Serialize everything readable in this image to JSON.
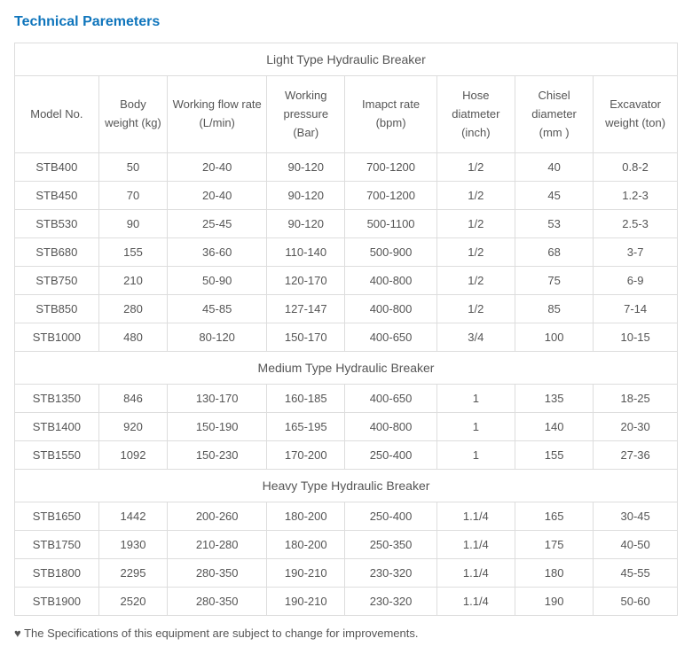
{
  "title": "Technical Paremeters",
  "columns": [
    "Model No.",
    "Body weight (kg)",
    "Working flow rate (L/min)",
    "Working pressure (Bar)",
    "Imapct rate (bpm)",
    "Hose diatmeter (inch)",
    "Chisel diameter (mm )",
    "Excavator weight (ton)"
  ],
  "groups": [
    {
      "label": "Light Type Hydraulic Breaker",
      "rows": [
        [
          "STB400",
          "50",
          "20-40",
          "90-120",
          "700-1200",
          "1/2",
          "40",
          "0.8-2"
        ],
        [
          "STB450",
          "70",
          "20-40",
          "90-120",
          "700-1200",
          "1/2",
          "45",
          "1.2-3"
        ],
        [
          "STB530",
          "90",
          "25-45",
          "90-120",
          "500-1100",
          "1/2",
          "53",
          "2.5-3"
        ],
        [
          "STB680",
          "155",
          "36-60",
          "110-140",
          "500-900",
          "1/2",
          "68",
          "3-7"
        ],
        [
          "STB750",
          "210",
          "50-90",
          "120-170",
          "400-800",
          "1/2",
          "75",
          "6-9"
        ],
        [
          "STB850",
          "280",
          "45-85",
          "127-147",
          "400-800",
          "1/2",
          "85",
          "7-14"
        ],
        [
          "STB1000",
          "480",
          "80-120",
          "150-170",
          "400-650",
          "3/4",
          "100",
          "10-15"
        ]
      ]
    },
    {
      "label": "Medium Type Hydraulic Breaker",
      "rows": [
        [
          "STB1350",
          "846",
          "130-170",
          "160-185",
          "400-650",
          "1",
          "135",
          "18-25"
        ],
        [
          "STB1400",
          "920",
          "150-190",
          "165-195",
          "400-800",
          "1",
          "140",
          "20-30"
        ],
        [
          "STB1550",
          "1092",
          "150-230",
          "170-200",
          "250-400",
          "1",
          "155",
          "27-36"
        ]
      ]
    },
    {
      "label": "Heavy Type Hydraulic Breaker",
      "rows": [
        [
          "STB1650",
          "1442",
          "200-260",
          "180-200",
          "250-400",
          "1.1/4",
          "165",
          "30-45"
        ],
        [
          "STB1750",
          "1930",
          "210-280",
          "180-200",
          "250-350",
          "1.1/4",
          "175",
          "40-50"
        ],
        [
          "STB1800",
          "2295",
          "280-350",
          "190-210",
          "230-320",
          "1.1/4",
          "180",
          "45-55"
        ],
        [
          "STB1900",
          "2520",
          "280-350",
          "190-210",
          "230-320",
          "1.1/4",
          "190",
          "50-60"
        ]
      ]
    }
  ],
  "footnote": "♥ The Specifications of this equipment are subject to change for improvements.",
  "colors": {
    "title": "#0f75bc",
    "border": "#dddddd",
    "text": "#555555",
    "background": "#ffffff"
  },
  "column_classes": [
    "col-model",
    "col-body",
    "col-flow",
    "col-press",
    "col-impact",
    "col-hose",
    "col-chisel",
    "col-exc"
  ]
}
